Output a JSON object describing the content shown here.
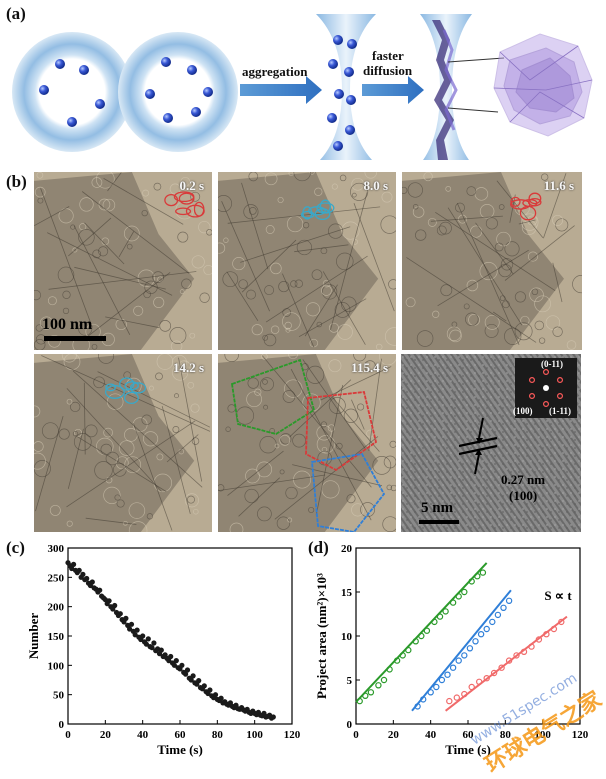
{
  "panel_labels": {
    "a": "(a)",
    "b": "(b)",
    "c": "(c)",
    "d": "(d)"
  },
  "schematic": {
    "step1": "aggregation",
    "step2_line1": "faster",
    "step2_line2": "diffusion"
  },
  "tem_frames": [
    {
      "time": "0.2 s"
    },
    {
      "time": "8.0 s"
    },
    {
      "time": "11.6 s"
    },
    {
      "time": "14.2 s"
    },
    {
      "time": "115.4 s"
    }
  ],
  "tem_scalebar": "100 nm",
  "hrtem": {
    "scalebar": "5 nm",
    "spacing": "0.27 nm",
    "plane": "(100)",
    "fft_indices": [
      "(0-11)",
      "(100)",
      "(1-11)"
    ]
  },
  "colors": {
    "red": "#d93a3a",
    "cyan": "#3aa8c8",
    "green": "#2a9a2a",
    "blue": "#2f7fd8",
    "pink": "#f06a6a"
  },
  "chart_data": [
    {
      "type": "scatter",
      "title": "",
      "xlabel": "Time (s)",
      "ylabel": "Number",
      "xlim": [
        0,
        120
      ],
      "ylim": [
        0,
        300
      ],
      "xticks": [
        0,
        20,
        40,
        60,
        80,
        100,
        120
      ],
      "yticks": [
        0,
        50,
        100,
        150,
        200,
        250,
        300
      ],
      "series": [
        {
          "x": [
            0,
            1,
            2,
            3,
            4,
            5,
            6,
            7,
            8,
            9,
            10,
            11,
            12,
            13,
            14,
            15,
            16,
            17,
            18,
            19,
            20,
            21,
            22,
            23,
            24,
            25,
            26,
            27,
            28,
            29,
            30,
            31,
            32,
            33,
            34,
            35,
            36,
            37,
            38,
            39,
            40,
            41,
            42,
            43,
            44,
            45,
            46,
            47,
            48,
            49,
            50,
            51,
            52,
            53,
            54,
            55,
            56,
            57,
            58,
            59,
            60,
            61,
            62,
            63,
            64,
            65,
            66,
            67,
            68,
            69,
            70,
            71,
            72,
            73,
            74,
            75,
            76,
            77,
            78,
            79,
            80,
            81,
            82,
            83,
            84,
            85,
            86,
            87,
            88,
            89,
            90,
            91,
            92,
            93,
            94,
            95,
            96,
            97,
            98,
            99,
            100,
            101,
            102,
            103,
            104,
            105,
            106,
            107,
            108,
            109,
            110
          ],
          "y": [
            275,
            270,
            265,
            272,
            262,
            258,
            262,
            250,
            255,
            246,
            248,
            240,
            236,
            242,
            232,
            230,
            225,
            228,
            218,
            215,
            212,
            205,
            210,
            200,
            196,
            202,
            190,
            185,
            188,
            178,
            174,
            180,
            168,
            162,
            170,
            158,
            152,
            160,
            148,
            144,
            150,
            140,
            136,
            145,
            132,
            130,
            138,
            125,
            128,
            120,
            126,
            115,
            118,
            112,
            108,
            115,
            104,
            100,
            108,
            96,
            94,
            100,
            88,
            85,
            92,
            78,
            75,
            82,
            70,
            68,
            74,
            62,
            60,
            65,
            55,
            52,
            58,
            48,
            45,
            50,
            42,
            40,
            44,
            36,
            38,
            34,
            32,
            36,
            30,
            28,
            32,
            26,
            25,
            28,
            24,
            22,
            25,
            20,
            18,
            22,
            18,
            16,
            20,
            15,
            14,
            18,
            12,
            13,
            15,
            10,
            12
          ]
        }
      ]
    },
    {
      "type": "scatter",
      "title": "",
      "xlabel": "Time (s)",
      "ylabel": "Project area (nm²)×10³",
      "annotation": "S ∝ t",
      "xlim": [
        0,
        120
      ],
      "ylim": [
        0,
        20
      ],
      "xticks": [
        0,
        20,
        40,
        60,
        80,
        100,
        120
      ],
      "yticks": [
        0,
        5,
        10,
        15,
        20
      ],
      "series": [
        {
          "color": "#2a9a2a",
          "x": [
            2,
            5,
            8,
            12,
            15,
            18,
            22,
            25,
            28,
            32,
            35,
            38,
            42,
            45,
            48,
            52,
            55,
            58,
            62,
            65,
            68
          ],
          "y": [
            2.6,
            3.2,
            3.6,
            4.4,
            5.0,
            6.2,
            7.2,
            7.8,
            8.4,
            9.4,
            10.0,
            10.6,
            11.6,
            12.2,
            12.8,
            13.8,
            14.5,
            15.0,
            16.2,
            16.8,
            17.2
          ],
          "fit": [
            [
              0,
              2.5
            ],
            [
              70,
              18.3
            ]
          ]
        },
        {
          "color": "#2f7fd8",
          "x": [
            33,
            36,
            40,
            43,
            46,
            49,
            52,
            55,
            58,
            61,
            64,
            67,
            70,
            73,
            76,
            79,
            82
          ],
          "y": [
            2.0,
            2.8,
            3.6,
            4.2,
            5.0,
            5.6,
            6.4,
            7.2,
            7.8,
            8.6,
            9.4,
            10.2,
            10.8,
            11.6,
            12.4,
            13.2,
            14.0
          ],
          "fit": [
            [
              30,
              1.5
            ],
            [
              83,
              15.2
            ]
          ]
        },
        {
          "color": "#f06a6a",
          "x": [
            50,
            54,
            58,
            62,
            66,
            70,
            74,
            78,
            82,
            86,
            90,
            94,
            98,
            102,
            106,
            110
          ],
          "y": [
            2.6,
            3.0,
            3.4,
            4.2,
            4.8,
            5.2,
            5.8,
            6.4,
            7.2,
            7.8,
            8.2,
            8.8,
            9.6,
            10.2,
            10.8,
            11.6
          ],
          "fit": [
            [
              48,
              1.5
            ],
            [
              113,
              12.2
            ]
          ]
        }
      ]
    }
  ]
}
